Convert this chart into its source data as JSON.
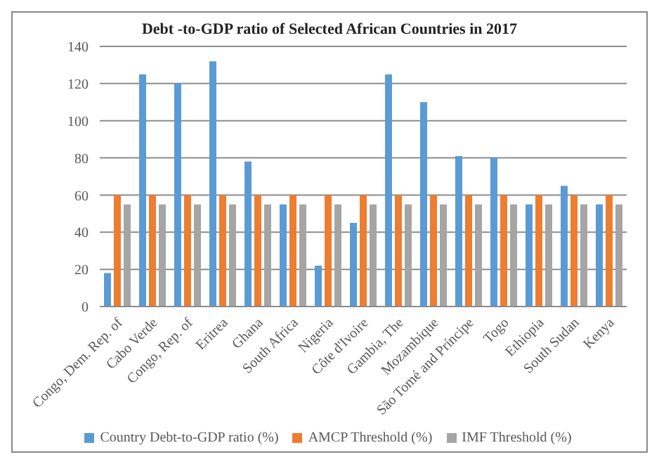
{
  "chart_data": {
    "type": "bar",
    "title": "Debt -to-GDP ratio of Selected African Countries in 2017",
    "categories": [
      "Congo, Dem. Rep. of",
      "Cabo Verde",
      "Congo, Rep. of",
      "Eritrea",
      "Ghana",
      "South Africa",
      "Nigeria",
      "Côte d'Ivoire",
      "Gambia, The",
      "Mozambique",
      "São Tomé and Príncipe",
      "Togo",
      "Ethiopia",
      "South Sudan",
      "Kenya"
    ],
    "series": [
      {
        "name": "Country Debt-to-GDP ratio (%)",
        "color": "#5b9bd5",
        "values": [
          18,
          125,
          120,
          132,
          78,
          55,
          22,
          45,
          125,
          110,
          81,
          80,
          55,
          65,
          55
        ]
      },
      {
        "name": "AMCP Threshold (%)",
        "color": "#ed7d31",
        "values": [
          60,
          60,
          60,
          60,
          60,
          60,
          60,
          60,
          60,
          60,
          60,
          60,
          60,
          60,
          60
        ]
      },
      {
        "name": "IMF Threshold (%)",
        "color": "#a5a5a5",
        "values": [
          55,
          55,
          55,
          55,
          55,
          55,
          55,
          55,
          55,
          55,
          55,
          55,
          55,
          55,
          55
        ]
      }
    ],
    "ylim": [
      0,
      140
    ],
    "yticks": [
      0,
      20,
      40,
      60,
      80,
      100,
      120,
      140
    ],
    "grid": "y",
    "legend": "bottom"
  }
}
